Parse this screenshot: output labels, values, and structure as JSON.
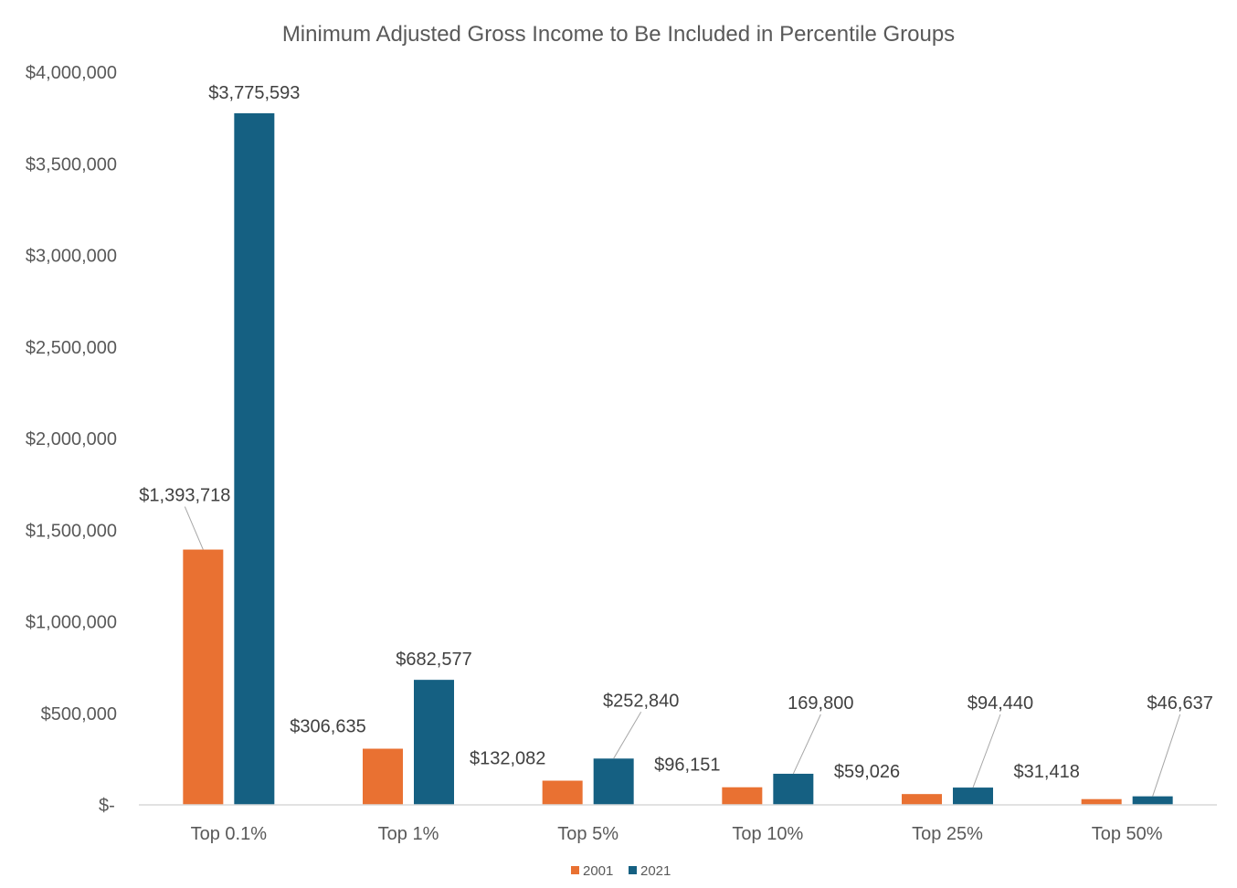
{
  "chart_data": {
    "type": "bar",
    "title": "Minimum Adjusted Gross Income to Be Included in Percentile Groups",
    "xlabel": "",
    "ylabel": "",
    "categories": [
      "Top 0.1%",
      "Top 1%",
      "Top 5%",
      "Top 10%",
      "Top 25%",
      "Top 50%"
    ],
    "series": [
      {
        "name": "2001",
        "color": "#E97132",
        "values": [
          1393718,
          306635,
          132082,
          96151,
          59026,
          31418
        ],
        "labels": [
          "$1,393,718",
          "$306,635",
          "$132,082",
          "$96,151",
          "$59,026",
          "$31,418"
        ]
      },
      {
        "name": "2021",
        "color": "#156082",
        "values": [
          3775593,
          682577,
          252840,
          169800,
          94440,
          46637
        ],
        "labels": [
          "$3,775,593",
          "$682,577",
          "$252,840",
          "169,800",
          "$94,440",
          "$46,637"
        ]
      }
    ],
    "ylim": [
      0,
      4000000
    ],
    "y_ticks": [
      0,
      500000,
      1000000,
      1500000,
      2000000,
      2500000,
      3000000,
      3500000,
      4000000
    ],
    "y_tick_labels": [
      "$-",
      "$500,000",
      "$1,000,000",
      "$1,500,000",
      "$2,000,000",
      "$2,500,000",
      "$3,000,000",
      "$3,500,000",
      "$4,000,000"
    ],
    "grid": false,
    "legend_position": "bottom",
    "axis_color": "#D9D9D9",
    "leader_line_color": "#A6A6A6"
  }
}
